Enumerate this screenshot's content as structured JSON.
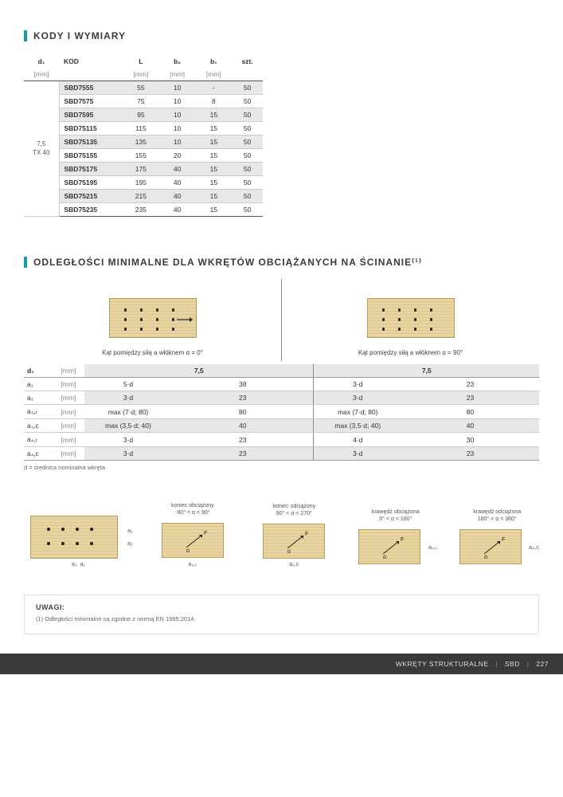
{
  "section1": {
    "title": "KODY I WYMIARY",
    "headers": [
      "d₁",
      "KOD",
      "L",
      "b₂",
      "b₁",
      "szt."
    ],
    "units": [
      "[mm]",
      "",
      "[mm]",
      "[mm]",
      "[mm]",
      ""
    ],
    "rowhead": "7,5\nTX 40",
    "rows": [
      {
        "kod": "SBD7555",
        "L": "55",
        "b2": "10",
        "b1": "-",
        "szt": "50"
      },
      {
        "kod": "SBD7575",
        "L": "75",
        "b2": "10",
        "b1": "8",
        "szt": "50"
      },
      {
        "kod": "SBD7595",
        "L": "95",
        "b2": "10",
        "b1": "15",
        "szt": "50"
      },
      {
        "kod": "SBD75115",
        "L": "115",
        "b2": "10",
        "b1": "15",
        "szt": "50"
      },
      {
        "kod": "SBD75135",
        "L": "135",
        "b2": "10",
        "b1": "15",
        "szt": "50"
      },
      {
        "kod": "SBD75155",
        "L": "155",
        "b2": "20",
        "b1": "15",
        "szt": "50"
      },
      {
        "kod": "SBD75175",
        "L": "175",
        "b2": "40",
        "b1": "15",
        "szt": "50"
      },
      {
        "kod": "SBD75195",
        "L": "195",
        "b2": "40",
        "b1": "15",
        "szt": "50"
      },
      {
        "kod": "SBD75215",
        "L": "215",
        "b2": "40",
        "b1": "15",
        "szt": "50"
      },
      {
        "kod": "SBD75235",
        "L": "235",
        "b2": "40",
        "b1": "15",
        "szt": "50"
      }
    ]
  },
  "section2": {
    "title": "ODLEGŁOŚCI MINIMALNE DLA WKRĘTÓW OBCIĄŻANYCH NA ŚCINANIE⁽¹⁾",
    "caption_left": "Kąt pomiędzy siłą a włóknem α = 0°",
    "caption_right": "Kąt pomiędzy siłą a włóknem α = 90°",
    "header_d": "d₁",
    "header_unit": "[mm]",
    "header_val": "7,5",
    "rows": [
      {
        "lbl": "a₁",
        "unit": "[mm]",
        "f1": "5·d",
        "v1": "38",
        "f2": "3·d",
        "v2": "23"
      },
      {
        "lbl": "a₂",
        "unit": "[mm]",
        "f1": "3·d",
        "v1": "23",
        "f2": "3·d",
        "v2": "23"
      },
      {
        "lbl": "a₃,ₜ",
        "unit": "[mm]",
        "f1": "max (7·d; 80)",
        "v1": "80",
        "f2": "max (7·d; 80)",
        "v2": "80"
      },
      {
        "lbl": "a₃,c",
        "unit": "[mm]",
        "f1": "max (3,5·d; 40)",
        "v1": "40",
        "f2": "max (3,5·d; 40)",
        "v2": "40"
      },
      {
        "lbl": "a₄,ₜ",
        "unit": "[mm]",
        "f1": "3·d",
        "v1": "23",
        "f2": "4·d",
        "v2": "30"
      },
      {
        "lbl": "a₄,c",
        "unit": "[mm]",
        "f1": "3·d",
        "v1": "23",
        "f2": "3·d",
        "v2": "23"
      }
    ],
    "footnote": "d = średnica nominalna wkręta"
  },
  "diagrams": {
    "d1_bottom_labels": {
      "a1": "a₁",
      "a2": "a₂",
      "a3": "a₃",
      "a4t": "a₄,ₜ",
      "a4c": "a₄,c",
      "a3t": "a₃,ₜ",
      "a3c": "a₃,c"
    },
    "items": [
      {
        "top_line1": "koniec obciążony",
        "top_line2": "-90° < α < 90°",
        "bottom": "a₃,ₜ"
      },
      {
        "top_line1": "koniec odciążony",
        "top_line2": "90° < α < 270°",
        "bottom": "a₃,c"
      },
      {
        "top_line1": "krawędź obciążona",
        "top_line2": "0° < α < 180°",
        "bottom": "",
        "side": "a₄,ₜ"
      },
      {
        "top_line1": "krawędź odciążona",
        "top_line2": "180° < α < 360°",
        "bottom": "",
        "side": "a₄,c"
      }
    ]
  },
  "notes": {
    "heading": "UWAGI:",
    "line1": "(1) Odległości minimalne są zgodne z normą EN 1995:2014."
  },
  "footer": {
    "text1": "WKRĘTY STRUKTURALNE",
    "text2": "SBD",
    "page": "227"
  },
  "colors": {
    "accent": "#1a9ca8",
    "wood": "#e8d4a0",
    "wood_border": "#b89b5c",
    "zebra": "#e7e7e7",
    "footer_bg": "#3a3a3a"
  }
}
